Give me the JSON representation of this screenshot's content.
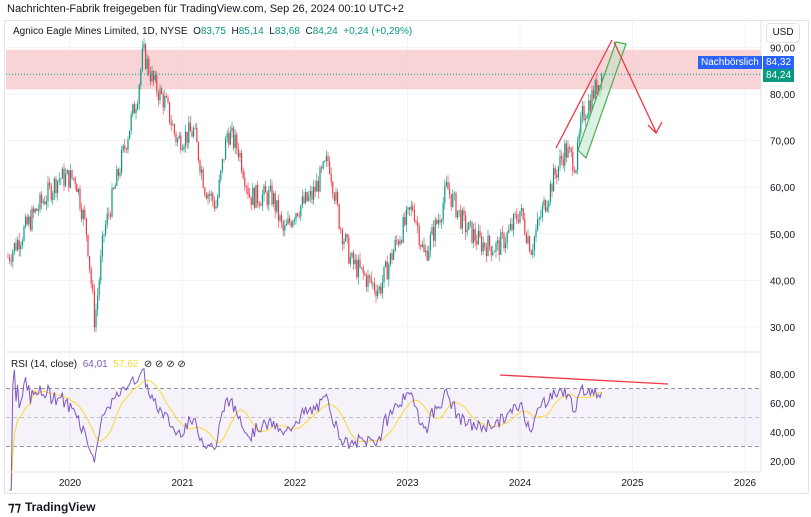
{
  "header": {
    "shared_by": "Nachrichten-Fabrik freigegeben für TradingView.com, Sep 26, 2024 00:10 UTC+2"
  },
  "legend": {
    "symbol": "Agnico Eagle Mines Limited, 1D, NYSE",
    "o_label": "O",
    "o": "83,75",
    "h_label": "H",
    "h": "85,14",
    "l_label": "L",
    "l": "83,68",
    "c_label": "C",
    "c": "84,24",
    "change": "+0,24 (+0,29%)"
  },
  "currency": "USD",
  "price_tags": {
    "after_hours_label": "Nachbörslich",
    "after_hours": "84,32",
    "last": "84,24"
  },
  "rsi": {
    "label": "RSI (14, close)",
    "value": "64,01",
    "ma": "57,62",
    "icons": [
      "hidden-icon",
      "hidden-icon",
      "hidden-icon",
      "hidden-icon"
    ]
  },
  "colors": {
    "up": "#089981",
    "down": "#f23645",
    "rsi": "#7e57c2",
    "rsi_ma": "#fdd835",
    "blue": "#2962ff",
    "zone": "#f7c5c8"
  },
  "footer": {
    "brand": "TradingView"
  },
  "chart_data": {
    "type": "candlestick",
    "price_axis": {
      "ticks": [
        "90,00",
        "80,00",
        "70,00",
        "60,00",
        "50,00",
        "40,00",
        "30,00"
      ],
      "range": [
        25,
        93
      ]
    },
    "rsi_axis": {
      "ticks": [
        "80,00",
        "60,00",
        "40,00",
        "20,00"
      ],
      "bands": [
        30,
        70
      ],
      "mid": 50
    },
    "x_ticks": [
      "2020",
      "2021",
      "2022",
      "2023",
      "2024",
      "2025",
      "2026"
    ],
    "resistance_zone": [
      81,
      89.5
    ],
    "price_path": [
      [
        2019.45,
        45
      ],
      [
        2019.7,
        55
      ],
      [
        2019.9,
        62
      ],
      [
        2020.05,
        62
      ],
      [
        2020.15,
        50
      ],
      [
        2020.22,
        31
      ],
      [
        2020.3,
        50
      ],
      [
        2020.45,
        65
      ],
      [
        2020.6,
        80
      ],
      [
        2020.65,
        89
      ],
      [
        2020.75,
        82
      ],
      [
        2020.85,
        78
      ],
      [
        2020.95,
        70
      ],
      [
        2021.1,
        72
      ],
      [
        2021.2,
        60
      ],
      [
        2021.3,
        56
      ],
      [
        2021.4,
        72
      ],
      [
        2021.5,
        68
      ],
      [
        2021.6,
        58
      ],
      [
        2021.8,
        58
      ],
      [
        2021.9,
        50
      ],
      [
        2022.0,
        55
      ],
      [
        2022.15,
        58
      ],
      [
        2022.3,
        66
      ],
      [
        2022.4,
        52
      ],
      [
        2022.5,
        44
      ],
      [
        2022.65,
        40
      ],
      [
        2022.75,
        38
      ],
      [
        2022.9,
        48
      ],
      [
        2023.05,
        56
      ],
      [
        2023.15,
        45
      ],
      [
        2023.3,
        55
      ],
      [
        2023.35,
        60
      ],
      [
        2023.5,
        52
      ],
      [
        2023.65,
        48
      ],
      [
        2023.8,
        47
      ],
      [
        2023.9,
        50
      ],
      [
        2024.0,
        55
      ],
      [
        2024.1,
        47
      ],
      [
        2024.2,
        55
      ],
      [
        2024.3,
        62
      ],
      [
        2024.4,
        68
      ],
      [
        2024.5,
        65
      ],
      [
        2024.55,
        75
      ],
      [
        2024.65,
        80
      ],
      [
        2024.73,
        84.24
      ]
    ]
  }
}
